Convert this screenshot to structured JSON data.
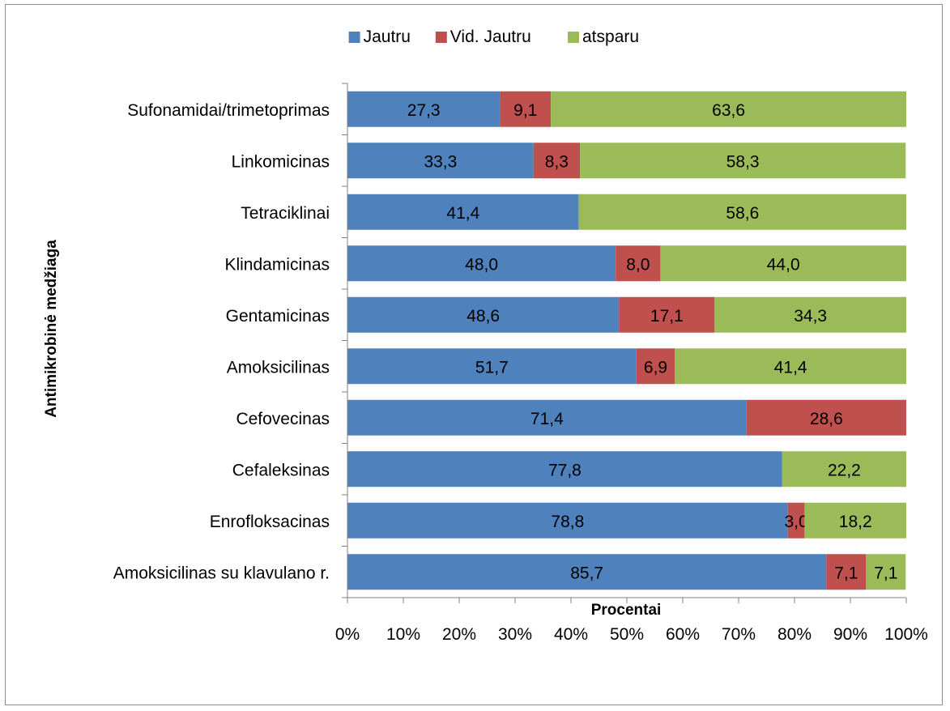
{
  "chart_data": {
    "type": "bar",
    "orientation": "horizontal",
    "stacked": "percent",
    "categories": [
      "Sufonamidai/trimetoprimas",
      "Linkomicinas",
      "Tetraciklinai",
      "Klindamicinas",
      "Gentamicinas",
      "Amoksicilinas",
      "Cefovecinas",
      "Cefaleksinas",
      "Enrofloksacinas",
      "Amoksicilinas su klavulano r."
    ],
    "series": [
      {
        "name": "Jautru",
        "color": "#4f81bd",
        "values": [
          27.3,
          33.3,
          41.4,
          48.0,
          48.6,
          51.7,
          71.4,
          77.8,
          78.8,
          85.7
        ],
        "labels": [
          "27,3",
          "33,3",
          "41,4",
          "48,0",
          "48,6",
          "51,7",
          "71,4",
          "77,8",
          "78,8",
          "85,7"
        ]
      },
      {
        "name": "Vid. Jautru",
        "color": "#c0504d",
        "values": [
          9.1,
          8.3,
          0,
          8.0,
          17.1,
          6.9,
          28.6,
          0,
          3.0,
          7.1
        ],
        "labels": [
          "9,1",
          "8,3",
          "",
          "8,0",
          "17,1",
          "6,9",
          "28,6",
          "",
          "3,0",
          "7,1"
        ]
      },
      {
        "name": "atsparu",
        "color": "#9bbb59",
        "values": [
          63.6,
          58.3,
          58.6,
          44.0,
          34.3,
          41.4,
          0,
          22.2,
          18.2,
          7.1
        ],
        "labels": [
          "63,6",
          "58,3",
          "58,6",
          "44,0",
          "34,3",
          "41,4",
          "",
          "22,2",
          "18,2",
          "7,1"
        ]
      }
    ],
    "xlim": [
      0,
      100
    ],
    "xticks": [
      "0%",
      "10%",
      "20%",
      "30%",
      "40%",
      "50%",
      "60%",
      "70%",
      "80%",
      "90%",
      "100%"
    ],
    "xlabel": "Procentai",
    "ylabel": "Antimikrobinė medžiaga",
    "title": "",
    "grid": false,
    "legend_position": "top"
  }
}
